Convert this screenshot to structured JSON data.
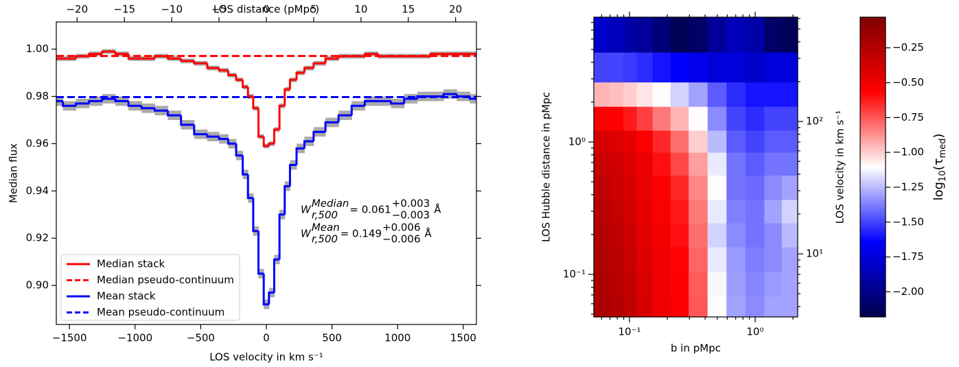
{
  "chart_data": [
    {
      "type": "step",
      "xlabel": "LOS velocity in km s⁻¹",
      "ylabel": "Median flux",
      "x2label": "LOS distance (pMpc)",
      "x": [
        -1600,
        -1500,
        -1400,
        -1300,
        -1200,
        -1100,
        -1000,
        -900,
        -800,
        -700,
        -600,
        -500,
        -400,
        -320,
        -260,
        -200,
        -160,
        -120,
        -80,
        -40,
        0,
        40,
        80,
        120,
        160,
        200,
        260,
        320,
        400,
        500,
        600,
        700,
        800,
        900,
        1000,
        1100,
        1200,
        1300,
        1400,
        1500,
        1600
      ],
      "xlim": [
        -1600,
        1600
      ],
      "xticks": [
        {
          "value": -1500,
          "label": "−1500"
        },
        {
          "value": -1000,
          "label": "−1000"
        },
        {
          "value": -500,
          "label": "−500"
        },
        0,
        500,
        1000,
        1500
      ],
      "x2lim": [
        -22.2,
        22.2
      ],
      "x2ticks": [
        {
          "value": -20,
          "label": "−20"
        },
        {
          "value": -15,
          "label": "−15"
        },
        {
          "value": -10,
          "label": "−10"
        },
        {
          "value": -5,
          "label": "−5"
        },
        0,
        5,
        10,
        15,
        20
      ],
      "ylim": [
        0.8835,
        1.0115
      ],
      "yticks": [
        {
          "value": 0.9,
          "label": "0.90"
        },
        0.92,
        0.94,
        0.96,
        0.98,
        {
          "value": 1,
          "label": "1.00"
        }
      ],
      "band_color": "#aaaaaa",
      "series": [
        {
          "name": "Median stack",
          "color": "#ff0000",
          "values": [
            0.996,
            0.996,
            0.997,
            0.998,
            0.999,
            0.998,
            0.996,
            0.996,
            0.997,
            0.996,
            0.995,
            0.994,
            0.992,
            0.991,
            0.989,
            0.987,
            0.984,
            0.98,
            0.975,
            0.963,
            0.959,
            0.96,
            0.966,
            0.976,
            0.983,
            0.987,
            0.99,
            0.992,
            0.994,
            0.996,
            0.997,
            0.997,
            0.998,
            0.997,
            0.997,
            0.997,
            0.997,
            0.998,
            0.998,
            0.998,
            0.998
          ],
          "errors": [
            0.001,
            0.001,
            0.001,
            0.001,
            0.001,
            0.001,
            0.001,
            0.001,
            0.001,
            0.001,
            0.001,
            0.001,
            0.001,
            0.001,
            0.001,
            0.001,
            0.001,
            0.001,
            0.001,
            0.001,
            0.001,
            0.001,
            0.001,
            0.001,
            0.001,
            0.001,
            0.001,
            0.001,
            0.001,
            0.001,
            0.001,
            0.001,
            0.001,
            0.001,
            0.001,
            0.001,
            0.001,
            0.001,
            0.001,
            0.001,
            0.001
          ],
          "continuum": {
            "name": "Median pseudo-continuum",
            "value": 0.9971
          }
        },
        {
          "name": "Mean stack",
          "color": "#0000ff",
          "values": [
            0.978,
            0.976,
            0.977,
            0.978,
            0.979,
            0.978,
            0.976,
            0.975,
            0.974,
            0.972,
            0.968,
            0.964,
            0.963,
            0.962,
            0.96,
            0.955,
            0.947,
            0.937,
            0.923,
            0.905,
            0.892,
            0.897,
            0.911,
            0.93,
            0.942,
            0.951,
            0.958,
            0.961,
            0.965,
            0.969,
            0.972,
            0.976,
            0.978,
            0.978,
            0.977,
            0.979,
            0.98,
            0.98,
            0.981,
            0.98,
            0.979
          ],
          "errors": [
            0.002,
            0.002,
            0.002,
            0.002,
            0.002,
            0.002,
            0.002,
            0.002,
            0.002,
            0.002,
            0.002,
            0.002,
            0.002,
            0.002,
            0.002,
            0.002,
            0.002,
            0.002,
            0.002,
            0.002,
            0.002,
            0.002,
            0.002,
            0.002,
            0.002,
            0.002,
            0.002,
            0.002,
            0.002,
            0.002,
            0.002,
            0.002,
            0.002,
            0.002,
            0.002,
            0.002,
            0.002,
            0.002,
            0.002,
            0.002,
            0.002
          ],
          "continuum": {
            "name": "Mean pseudo-continuum",
            "value": 0.9797
          }
        }
      ],
      "legend": "lower left",
      "annotations": [
        {
          "symbol": "W",
          "sup": "Median",
          "sub": "r,500",
          "text": "= 0.061",
          "plus": "+0.003",
          "minus": "−0.003",
          "unit": "Å"
        },
        {
          "symbol": "W",
          "sup": "Mean",
          "sub": "r,500",
          "text": "= 0.149",
          "plus": "+0.006",
          "minus": "−0.006",
          "unit": "Å"
        }
      ]
    },
    {
      "type": "heatmap",
      "xlabel": "b in pMpc",
      "ylabel": "LOS Hubble distance in pMpc",
      "y2label": "LOS velocity in km s⁻¹",
      "colorbar_label": [
        "log",
        "10",
        "(τ",
        "med",
        ")"
      ],
      "xscale": "log",
      "yscale": "log",
      "x": [
        0.06,
        0.08,
        0.1,
        0.13,
        0.18,
        0.25,
        0.35,
        0.5,
        0.7,
        1.0,
        1.4,
        1.9
      ],
      "y": [
        0.055,
        0.085,
        0.13,
        0.2,
        0.3,
        0.45,
        0.7,
        1.0,
        1.5,
        2.3,
        3.5,
        6.5
      ],
      "z": [
        [
          -0.2,
          -0.25,
          -0.3,
          -0.4,
          -0.5,
          -0.55,
          -0.75,
          -1.1,
          -1.3,
          -1.35,
          -1.3,
          -1.3
        ],
        [
          -0.21,
          -0.26,
          -0.31,
          -0.41,
          -0.5,
          -0.56,
          -0.76,
          -1.12,
          -1.31,
          -1.36,
          -1.32,
          -1.3
        ],
        [
          -0.22,
          -0.27,
          -0.33,
          -0.42,
          -0.5,
          -0.57,
          -0.78,
          -1.15,
          -1.32,
          -1.38,
          -1.35,
          -1.3
        ],
        [
          -0.25,
          -0.3,
          -0.35,
          -0.45,
          -0.52,
          -0.6,
          -0.8,
          -1.2,
          -1.35,
          -1.4,
          -1.35,
          -1.25
        ],
        [
          -0.27,
          -0.32,
          -0.38,
          -0.46,
          -0.55,
          -0.62,
          -0.82,
          -1.15,
          -1.37,
          -1.4,
          -1.3,
          -1.2
        ],
        [
          -0.3,
          -0.35,
          -0.4,
          -0.48,
          -0.56,
          -0.65,
          -0.85,
          -1.1,
          -1.4,
          -1.42,
          -1.35,
          -1.3
        ],
        [
          -0.33,
          -0.37,
          -0.42,
          -0.5,
          -0.6,
          -0.72,
          -0.9,
          -1.15,
          -1.4,
          -1.45,
          -1.4,
          -1.4
        ],
        [
          -0.4,
          -0.43,
          -0.47,
          -0.55,
          -0.65,
          -0.8,
          -1.0,
          -1.25,
          -1.45,
          -1.5,
          -1.45,
          -1.45
        ],
        [
          -0.55,
          -0.57,
          -0.62,
          -0.7,
          -0.82,
          -0.95,
          -1.1,
          -1.35,
          -1.5,
          -1.55,
          -1.5,
          -1.5
        ],
        [
          -0.95,
          -0.97,
          -1.0,
          -1.05,
          -1.1,
          -1.2,
          -1.3,
          -1.45,
          -1.55,
          -1.6,
          -1.6,
          -1.6
        ],
        [
          -1.5,
          -1.5,
          -1.52,
          -1.55,
          -1.6,
          -1.65,
          -1.7,
          -1.75,
          -1.75,
          -1.8,
          -1.75,
          -1.75
        ],
        [
          -1.8,
          -1.85,
          -1.9,
          -1.95,
          -2.05,
          -2.15,
          -2.1,
          -1.95,
          -1.85,
          -1.9,
          -2.1,
          -2.15
        ]
      ],
      "xlim": [
        0.052,
        2.18
      ],
      "xticks": [
        {
          "value": 0.1,
          "label": "10⁻¹"
        },
        {
          "value": 1,
          "label": "10⁰"
        }
      ],
      "xminor": [
        0.06,
        0.07,
        0.08,
        0.09,
        0.2,
        0.3,
        0.4,
        0.5,
        0.6,
        0.7,
        0.8,
        0.9,
        2
      ],
      "ylim": [
        0.0477,
        8.77
      ],
      "yticks": [
        {
          "value": 0.1,
          "label": "10⁻¹"
        },
        {
          "value": 1,
          "label": "10⁰"
        }
      ],
      "yminor": [
        0.05,
        0.06,
        0.07,
        0.08,
        0.09,
        0.2,
        0.3,
        0.4,
        0.5,
        0.6,
        0.7,
        0.8,
        0.9,
        2,
        3,
        4,
        5,
        6,
        7,
        8
      ],
      "y2lim": [
        3.34,
        614
      ],
      "y2ticks": [
        {
          "value": 10,
          "label": "10¹"
        },
        {
          "value": 100,
          "label": "10²"
        }
      ],
      "y2minor": [
        4,
        5,
        6,
        7,
        8,
        9,
        20,
        30,
        40,
        50,
        60,
        70,
        80,
        90,
        200,
        300,
        400,
        500,
        600
      ],
      "zlim": [
        -2.18,
        -0.03
      ],
      "zticks": [
        {
          "value": -0.25,
          "label": "−0.25"
        },
        {
          "value": -0.5,
          "label": "−0.50"
        },
        {
          "value": -0.75,
          "label": "−0.75"
        },
        {
          "value": -1,
          "label": "−1.00"
        },
        {
          "value": -1.25,
          "label": "−1.25"
        },
        {
          "value": -1.5,
          "label": "−1.50"
        },
        {
          "value": -1.75,
          "label": "−1.75"
        },
        {
          "value": -2,
          "label": "−2.00"
        }
      ],
      "colormap": [
        "#00004c",
        "#0000ff",
        "#ffffff",
        "#ff0000",
        "#800000"
      ]
    }
  ]
}
